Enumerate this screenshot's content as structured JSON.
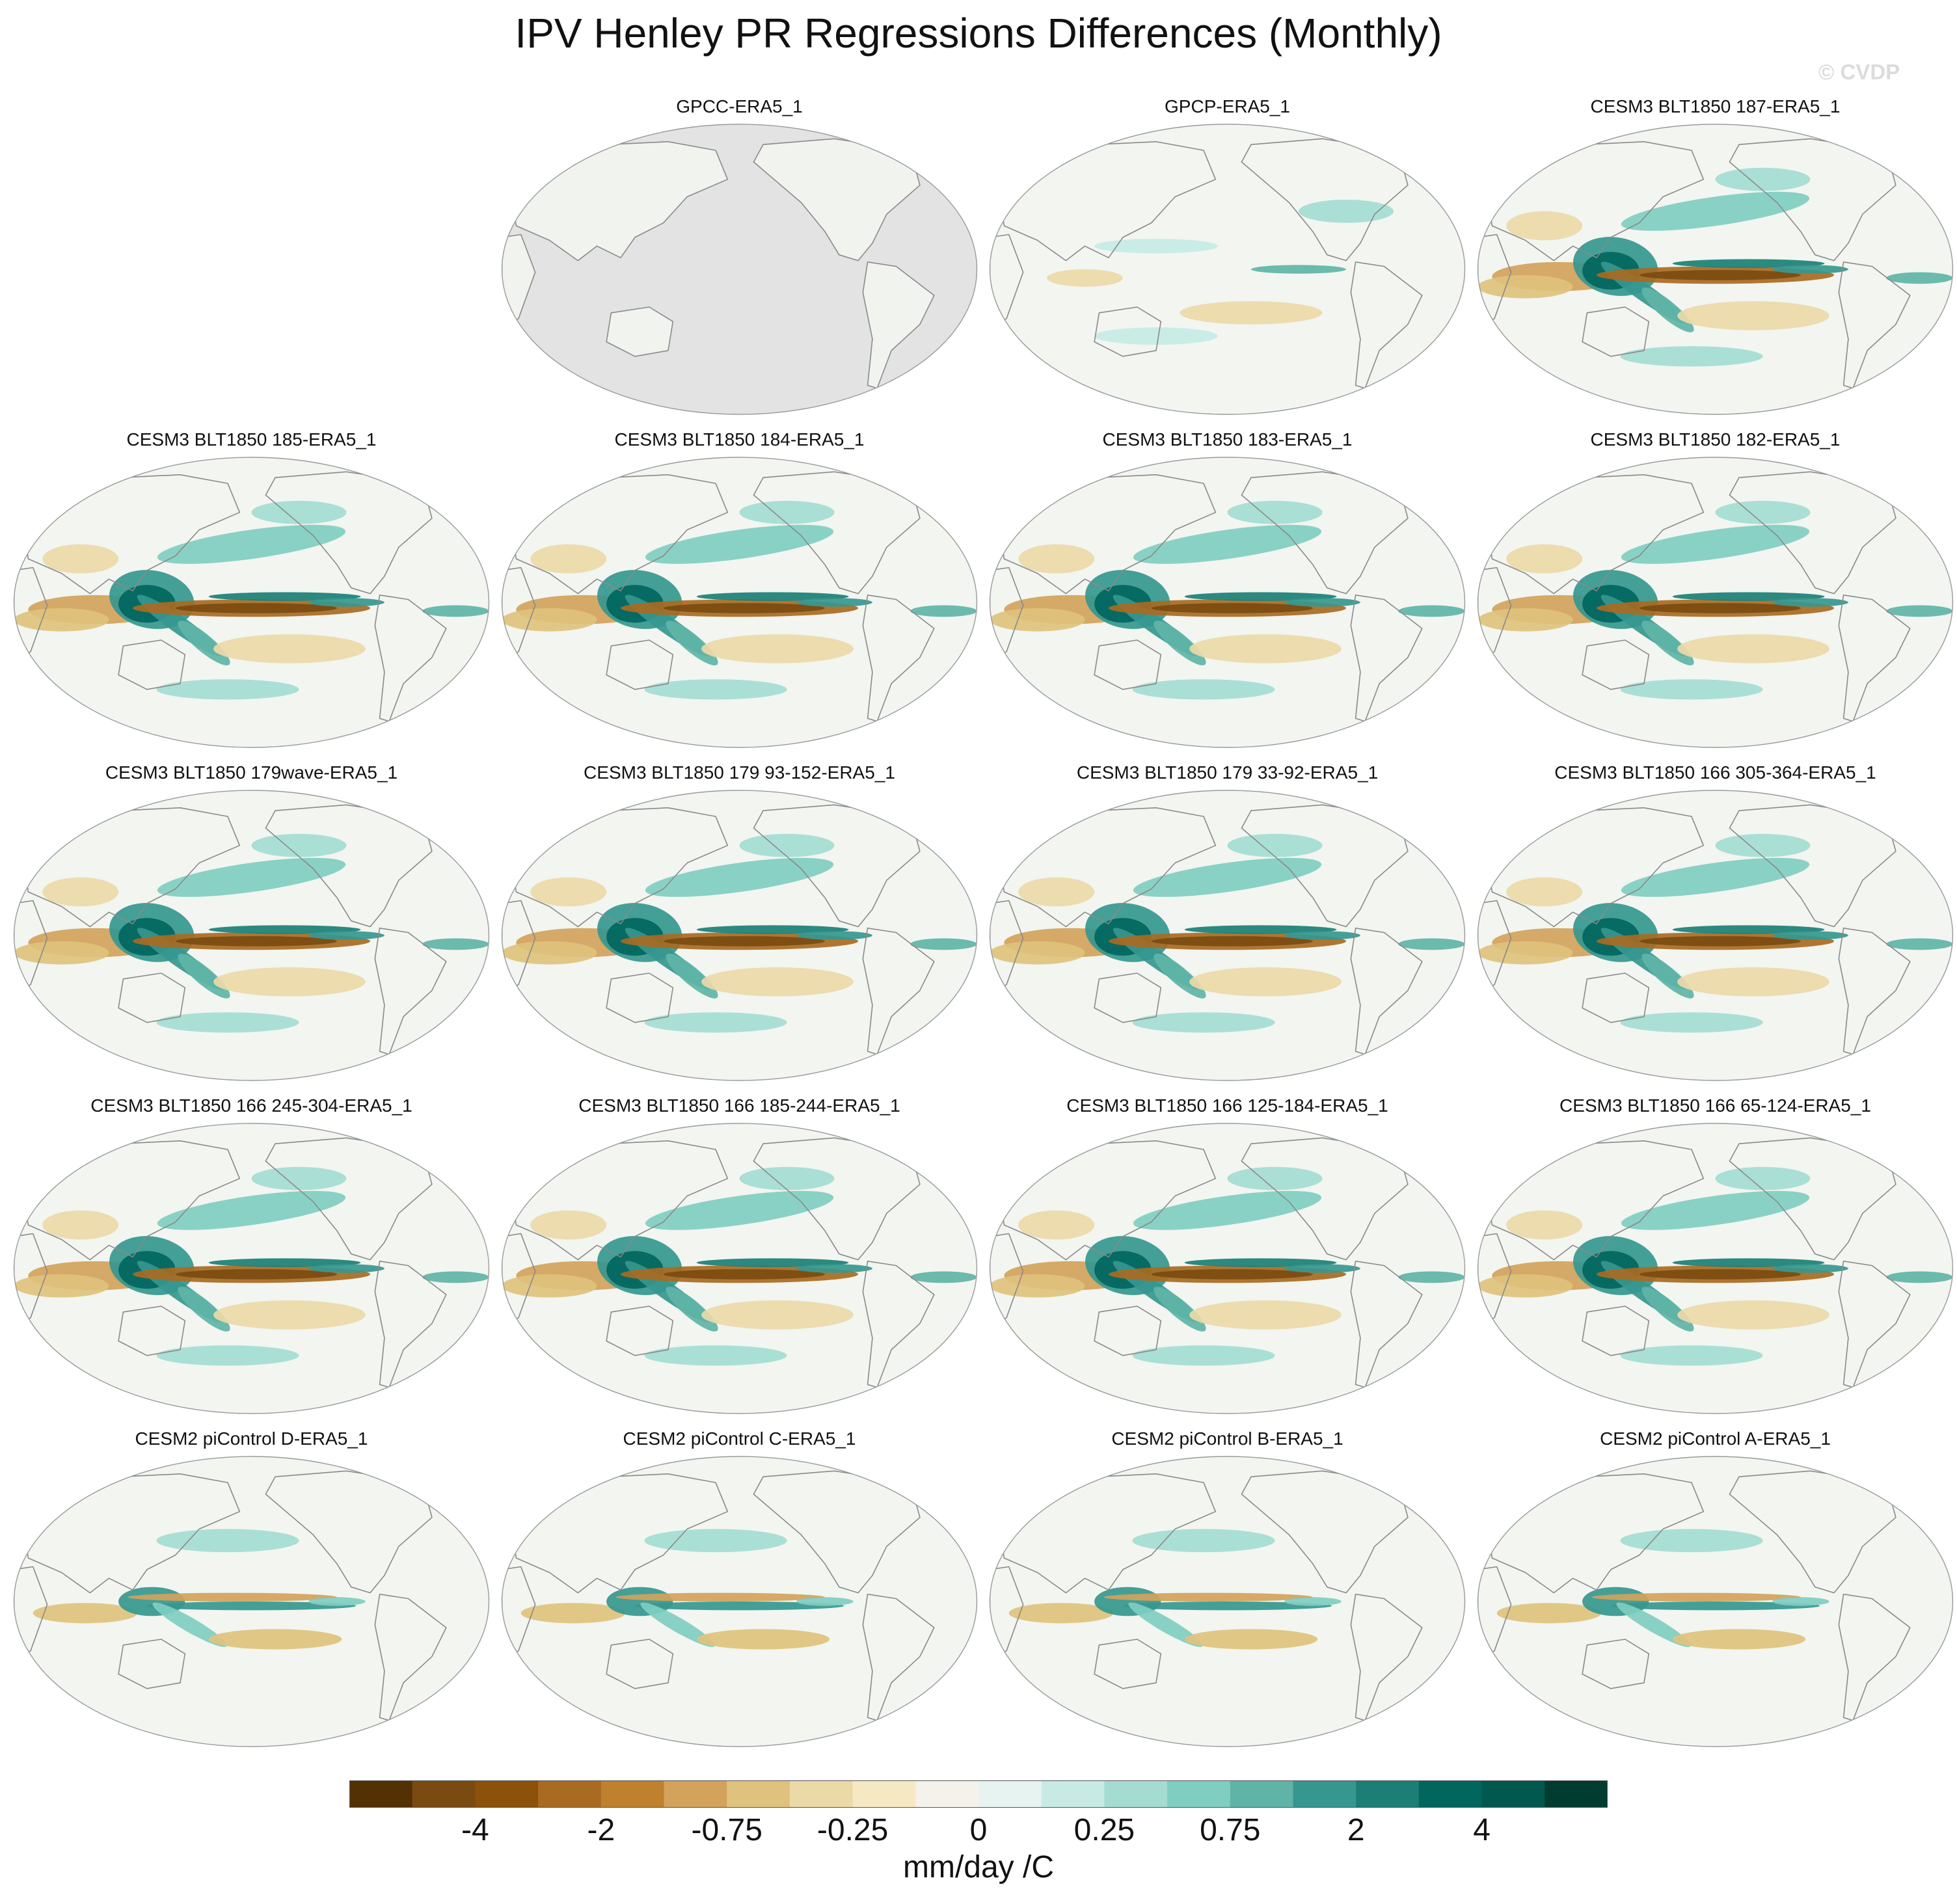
{
  "title": "IPV Henley PR Regressions Differences (Monthly)",
  "watermark": "© CVDP",
  "panels": [
    {
      "label": "GPCC-ERA5_1",
      "style": "gpcc"
    },
    {
      "label": "GPCP-ERA5_1",
      "style": "gpcp"
    },
    {
      "label": "CESM3 BLT1850 187-ERA5_1",
      "style": "model"
    },
    {
      "label": "CESM3 BLT1850 185-ERA5_1",
      "style": "model"
    },
    {
      "label": "CESM3 BLT1850 184-ERA5_1",
      "style": "model"
    },
    {
      "label": "CESM3 BLT1850 183-ERA5_1",
      "style": "model"
    },
    {
      "label": "CESM3 BLT1850 182-ERA5_1",
      "style": "model"
    },
    {
      "label": "CESM3 BLT1850 179wave-ERA5_1",
      "style": "model"
    },
    {
      "label": "CESM3 BLT1850 179 93-152-ERA5_1",
      "style": "model"
    },
    {
      "label": "CESM3 BLT1850 179 33-92-ERA5_1",
      "style": "model"
    },
    {
      "label": "CESM3 BLT1850 166 305-364-ERA5_1",
      "style": "model"
    },
    {
      "label": "CESM3 BLT1850 166 245-304-ERA5_1",
      "style": "model"
    },
    {
      "label": "CESM3 BLT1850 166 185-244-ERA5_1",
      "style": "model"
    },
    {
      "label": "CESM3 BLT1850 166 125-184-ERA5_1",
      "style": "model"
    },
    {
      "label": "CESM3 BLT1850 166 65-124-ERA5_1",
      "style": "model"
    },
    {
      "label": "CESM2 piControl D-ERA5_1",
      "style": "pic"
    },
    {
      "label": "CESM2 piControl C-ERA5_1",
      "style": "pic"
    },
    {
      "label": "CESM2 piControl B-ERA5_1",
      "style": "pic"
    },
    {
      "label": "CESM2 piControl A-ERA5_1",
      "style": "pic"
    }
  ],
  "colorbar": {
    "units": "mm/day /C",
    "colors": [
      "#543005",
      "#7a4b10",
      "#8c510a",
      "#a96a22",
      "#bf812d",
      "#d3a25b",
      "#dfc27d",
      "#ecd9a8",
      "#f6e8c3",
      "#f5f2eb",
      "#e6f3f1",
      "#c7eae5",
      "#a4dcd2",
      "#80cdc1",
      "#5fb4a7",
      "#35978f",
      "#1b7f76",
      "#01665e",
      "#00584f",
      "#003c30"
    ],
    "ticks": [
      {
        "label": "-4",
        "boundary": 2
      },
      {
        "label": "-2",
        "boundary": 4
      },
      {
        "label": "-0.75",
        "boundary": 6
      },
      {
        "label": "-0.25",
        "boundary": 8
      },
      {
        "label": "0",
        "boundary": 10
      },
      {
        "label": "0.25",
        "boundary": 12
      },
      {
        "label": "0.75",
        "boundary": 14
      },
      {
        "label": "2",
        "boundary": 16
      },
      {
        "label": "4",
        "boundary": 18
      }
    ]
  }
}
